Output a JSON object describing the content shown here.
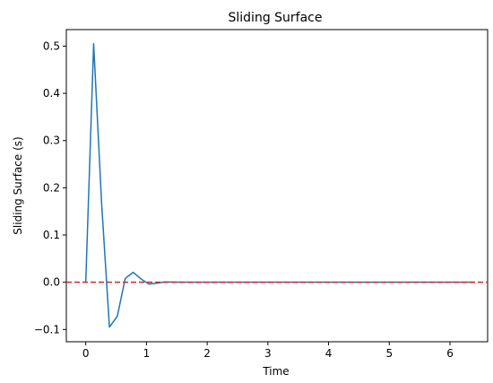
{
  "chart_data": {
    "type": "line",
    "title": "Sliding Surface",
    "xlabel": "Time",
    "ylabel": "Sliding Surface (s)",
    "xlim": [
      -0.32,
      6.62
    ],
    "ylim": [
      -0.126,
      0.535
    ],
    "x_ticks": [
      0,
      1,
      2,
      3,
      4,
      5,
      6
    ],
    "x_tick_labels": [
      "0",
      "1",
      "2",
      "3",
      "4",
      "5",
      "6"
    ],
    "y_ticks": [
      -0.1,
      0.0,
      0.1,
      0.2,
      0.3,
      0.4,
      0.5
    ],
    "y_tick_labels": [
      "−0.1",
      "0.0",
      "0.1",
      "0.2",
      "0.3",
      "0.4",
      "0.5"
    ],
    "grid": false,
    "series": [
      {
        "color": "#1f77b4",
        "x": [
          0,
          0.13,
          0.26,
          0.39,
          0.52,
          0.65,
          0.78,
          0.91,
          1.04,
          1.17,
          1.3,
          1.43,
          1.56,
          1.69,
          1.82,
          1.95,
          2.5,
          3.0,
          3.5,
          4.0,
          4.5,
          5.0,
          5.5,
          6.0,
          6.4
        ],
        "y": [
          0.0,
          0.505,
          0.17,
          -0.095,
          -0.072,
          0.008,
          0.021,
          0.007,
          -0.004,
          -0.002,
          0.0005,
          0.0002,
          0.0,
          0.0,
          0.0,
          0.0,
          0.0,
          0.0,
          0.0,
          0.0,
          0.0,
          0.0,
          0.0,
          0.0,
          0.0
        ]
      }
    ],
    "reference_line": {
      "y": 0.0,
      "color": "#d62728",
      "style": "dashed"
    }
  }
}
